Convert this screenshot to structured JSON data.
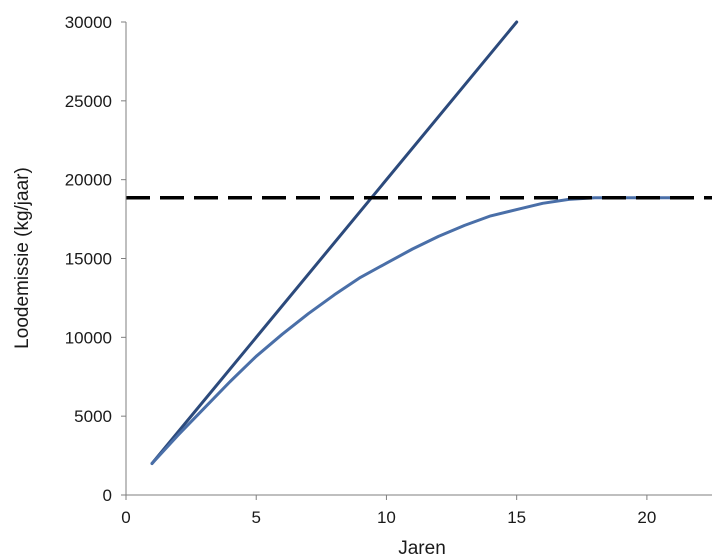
{
  "chart_data": {
    "type": "line",
    "title": "",
    "xlabel": "Jaren",
    "ylabel": "Loodemissie (kg/jaar)",
    "xlim": [
      0,
      22.5
    ],
    "ylim": [
      0,
      30000
    ],
    "x_ticks": [
      0,
      5,
      10,
      15,
      20
    ],
    "y_ticks": [
      0,
      5000,
      10000,
      15000,
      20000,
      25000,
      30000
    ],
    "grid": false,
    "legend": "none",
    "series": [
      {
        "style": "solid",
        "color": "#2c4a7c",
        "x": [
          1,
          15
        ],
        "y": [
          2000,
          30000
        ]
      },
      {
        "style": "solid",
        "color": "#4a6fa8",
        "x": [
          1,
          2,
          3,
          4,
          5,
          6,
          7,
          8,
          9,
          10,
          11,
          12,
          13,
          14,
          15,
          16,
          17,
          18,
          19,
          20,
          21
        ],
        "y": [
          2000,
          3800,
          5500,
          7200,
          8800,
          10200,
          11500,
          12700,
          13800,
          14700,
          15600,
          16400,
          17100,
          17700,
          18100,
          18500,
          18750,
          18850,
          18850,
          18850,
          18850
        ]
      },
      {
        "style": "dashed",
        "color": "#000000",
        "x": [
          0,
          22.5
        ],
        "y": [
          18850,
          18850
        ]
      }
    ]
  }
}
